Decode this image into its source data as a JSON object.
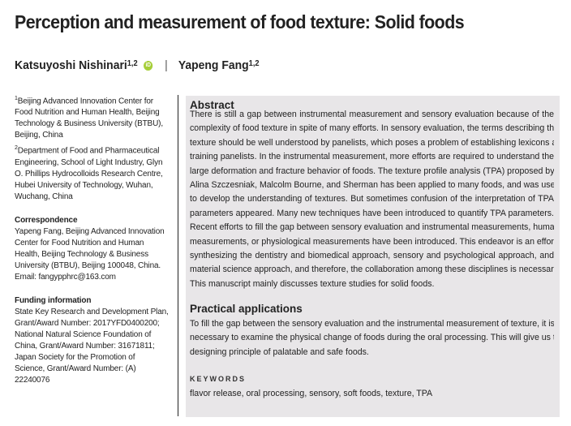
{
  "title": "Perception and measurement of food texture: Solid foods",
  "authors": [
    {
      "name": "Katsuyoshi Nishinari",
      "affil": "1,2",
      "orcid_icon": "orcid-icon",
      "orcid_label": "iD"
    },
    {
      "name": "Yapeng Fang",
      "affil": "1,2"
    }
  ],
  "author_separator": "|",
  "affiliations": [
    {
      "num": "1",
      "lines": [
        "Beijing Advanced Innovation Center for",
        "Food Nutrition and Human Health, Beijing",
        "Technology & Business University (BTBU),",
        "Beijing, China"
      ]
    },
    {
      "num": "2",
      "lines": [
        "Department of Food and Pharmaceutical",
        "Engineering, School of Light Industry, Glyn",
        "O. Phillips Hydrocolloids Research Centre,",
        "Hubei University of Technology, Wuhan,",
        "Wuchang, China"
      ]
    }
  ],
  "correspondence": {
    "heading": "Correspondence",
    "lines": [
      "Yapeng Fang, Beijing Advanced Innovation",
      "Center for Food Nutrition and Human",
      "Health, Beijing Technology & Business",
      "University (BTBU), Beijing 100048, China.",
      "Email: fangypphrc@163.com"
    ]
  },
  "funding": {
    "heading": "Funding information",
    "lines": [
      "State Key Research and Development Plan,",
      "Grant/Award Number: 2017YFD0400200;",
      "National Natural Science Foundation of",
      "China, Grant/Award Number: 31671811;",
      "Japan Society for the Promotion of",
      "Science, Grant/Award Number: (A)",
      "22240076"
    ]
  },
  "abstract": {
    "heading": "Abstract",
    "lines": [
      "There is still a gap between instrumental measurement and sensory evaluation because of the",
      "complexity of food texture in spite of many efforts. In sensory evaluation, the terms describing the",
      "texture should be well understood by panelists, which poses a problem of establishing lexicons and",
      "training panelists. In the instrumental measurement, more efforts are required to understand the",
      "large deformation and fracture behavior of foods. The texture profile analysis (TPA) proposed by",
      "Alina Szczesniak, Malcolm Bourne, and Sherman has been applied to many foods, and was useful",
      "to develop the understanding of textures. But sometimes confusion of the interpretation of TPA",
      "parameters appeared. Many new techniques have been introduced to quantify TPA parameters.",
      "Recent efforts to fill the gap between sensory evaluation and instrumental measurements, human",
      "measurements, or physiological measurements have been introduced. This endeavor is an effort of",
      "synthesizing the dentistry and biomedical approach, sensory and psychological approach, and",
      "material science approach, and therefore, the collaboration among these disciplines is necessary.",
      "This manuscript mainly discusses texture studies for solid foods."
    ]
  },
  "practical": {
    "heading": "Practical applications",
    "lines": [
      "To fill the gap between the sensory evaluation and the instrumental measurement of texture, it is",
      "necessary to examine the physical change of foods during the oral processing. This will give us the",
      "designing principle of palatable and safe foods."
    ]
  },
  "keywords": {
    "heading": "KEYWORDS",
    "text": "flavor release, oral processing, sensory, soft foods, texture, TPA"
  },
  "colors": {
    "abstract_bg": "#e8e6e8",
    "orcid": "#a6ce39"
  }
}
